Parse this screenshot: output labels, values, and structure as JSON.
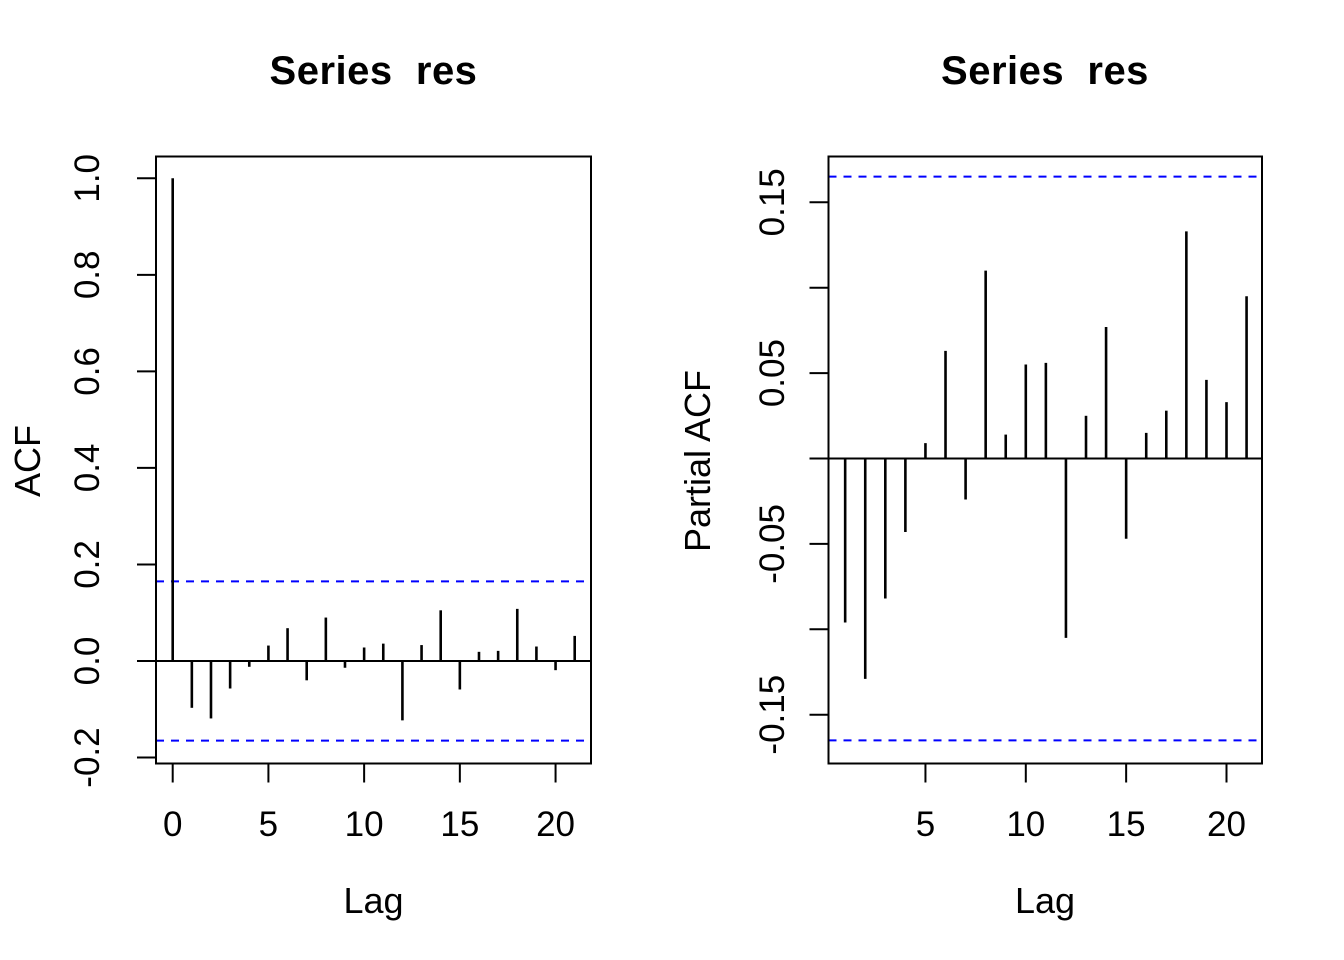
{
  "page": {
    "background": "#ffffff",
    "foreground": "#000000"
  },
  "chart_data": [
    {
      "type": "bar",
      "subtype": "stem-acf",
      "title": "Series  res",
      "xlabel": "Lag",
      "ylabel": "ACF",
      "x": [
        0,
        1,
        2,
        3,
        4,
        5,
        6,
        7,
        8,
        9,
        10,
        11,
        12,
        13,
        14,
        15,
        16,
        17,
        18,
        19,
        20,
        21
      ],
      "values": [
        1.0,
        -0.097,
        -0.119,
        -0.057,
        -0.012,
        0.032,
        0.068,
        -0.04,
        0.09,
        -0.014,
        0.028,
        0.036,
        -0.123,
        0.033,
        0.105,
        -0.059,
        0.019,
        0.021,
        0.108,
        0.03,
        -0.019,
        0.052
      ],
      "conf_band": 0.165,
      "conf_band_style": "dashed",
      "xlim": [
        -0.84,
        21.84
      ],
      "ylim": [
        -0.215,
        1.045
      ],
      "grid": false,
      "legend": "none",
      "y_ticks": [
        {
          "value": 1.0,
          "label": "1.0"
        },
        {
          "value": 0.8,
          "label": "0.8"
        },
        {
          "value": 0.6,
          "label": "0.6"
        },
        {
          "value": 0.4,
          "label": "0.4"
        },
        {
          "value": 0.2,
          "label": "0.2"
        },
        {
          "value": 0.0,
          "label": "0.0"
        },
        {
          "value": -0.2,
          "label": "-0.2"
        }
      ],
      "x_ticks": [
        {
          "value": 0,
          "label": "0"
        },
        {
          "value": 5,
          "label": "5"
        },
        {
          "value": 10,
          "label": "10"
        },
        {
          "value": 15,
          "label": "15"
        },
        {
          "value": 20,
          "label": "20"
        }
      ],
      "colors": {
        "stem": "#000000",
        "band": "#0000ff",
        "axis": "#000000"
      }
    },
    {
      "type": "bar",
      "subtype": "stem-pacf",
      "title": "Series  res",
      "xlabel": "Lag",
      "ylabel": "Partial ACF",
      "x": [
        1,
        2,
        3,
        4,
        5,
        6,
        7,
        8,
        9,
        10,
        11,
        12,
        13,
        14,
        15,
        16,
        17,
        18,
        19,
        20,
        21
      ],
      "values": [
        -0.096,
        -0.129,
        -0.082,
        -0.043,
        0.009,
        0.063,
        -0.024,
        0.11,
        0.014,
        0.055,
        0.056,
        -0.105,
        0.025,
        0.077,
        -0.047,
        0.015,
        0.028,
        0.133,
        0.046,
        0.033,
        0.095
      ],
      "conf_band": 0.165,
      "conf_band_style": "dashed",
      "xlim": [
        0.2,
        21.8
      ],
      "ylim": [
        -0.178,
        0.178
      ],
      "grid": false,
      "legend": "none",
      "y_ticks": [
        {
          "value": 0.15,
          "label": "0.15"
        },
        {
          "value": 0.1,
          "label": ""
        },
        {
          "value": 0.05,
          "label": "0.05"
        },
        {
          "value": 0.0,
          "label": ""
        },
        {
          "value": -0.05,
          "label": "-0.05"
        },
        {
          "value": -0.1,
          "label": ""
        },
        {
          "value": -0.15,
          "label": "-0.15"
        }
      ],
      "x_ticks": [
        {
          "value": 5,
          "label": "5"
        },
        {
          "value": 10,
          "label": "10"
        },
        {
          "value": 15,
          "label": "15"
        },
        {
          "value": 20,
          "label": "20"
        }
      ],
      "colors": {
        "stem": "#000000",
        "band": "#0000ff",
        "axis": "#000000"
      }
    }
  ]
}
